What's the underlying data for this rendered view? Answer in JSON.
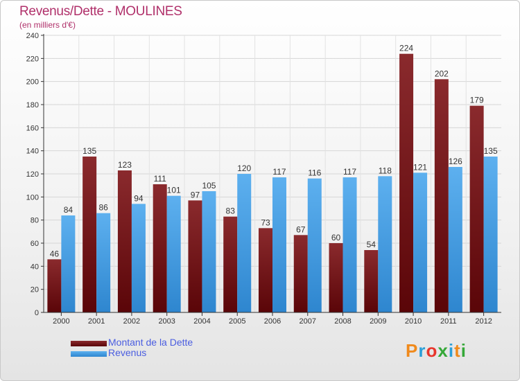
{
  "header": {
    "title": "Revenus/Dette - MOULINES",
    "subtitle": "(en milliers d'€)"
  },
  "legend": {
    "items": [
      {
        "label": "Montant de la Dette",
        "color": "#6b0f12"
      },
      {
        "label": "Revenus",
        "color": "#3f9ae3"
      }
    ]
  },
  "logo": {
    "text": "Proxiti",
    "colors": [
      "#f08a1c",
      "#2b9fd8",
      "#e8362c",
      "#35a838",
      "#2b9fd8",
      "#f08a1c",
      "#35a838"
    ]
  },
  "chart_data": {
    "type": "bar",
    "categories": [
      "2000",
      "2001",
      "2002",
      "2003",
      "2004",
      "2005",
      "2006",
      "2007",
      "2008",
      "2009",
      "2010",
      "2011",
      "2012"
    ],
    "series": [
      {
        "name": "Montant de la Dette",
        "color": "#6b0f12",
        "values": [
          46,
          135,
          123,
          111,
          97,
          83,
          73,
          67,
          60,
          54,
          224,
          202,
          179
        ]
      },
      {
        "name": "Revenus",
        "color": "#3f9ae3",
        "values": [
          84,
          86,
          94,
          101,
          105,
          120,
          117,
          116,
          117,
          118,
          121,
          126,
          135
        ]
      }
    ],
    "yticks": [
      0,
      20,
      40,
      60,
      80,
      100,
      120,
      140,
      160,
      180,
      200,
      220,
      240
    ],
    "ylim": [
      0,
      240
    ],
    "grid": true
  }
}
